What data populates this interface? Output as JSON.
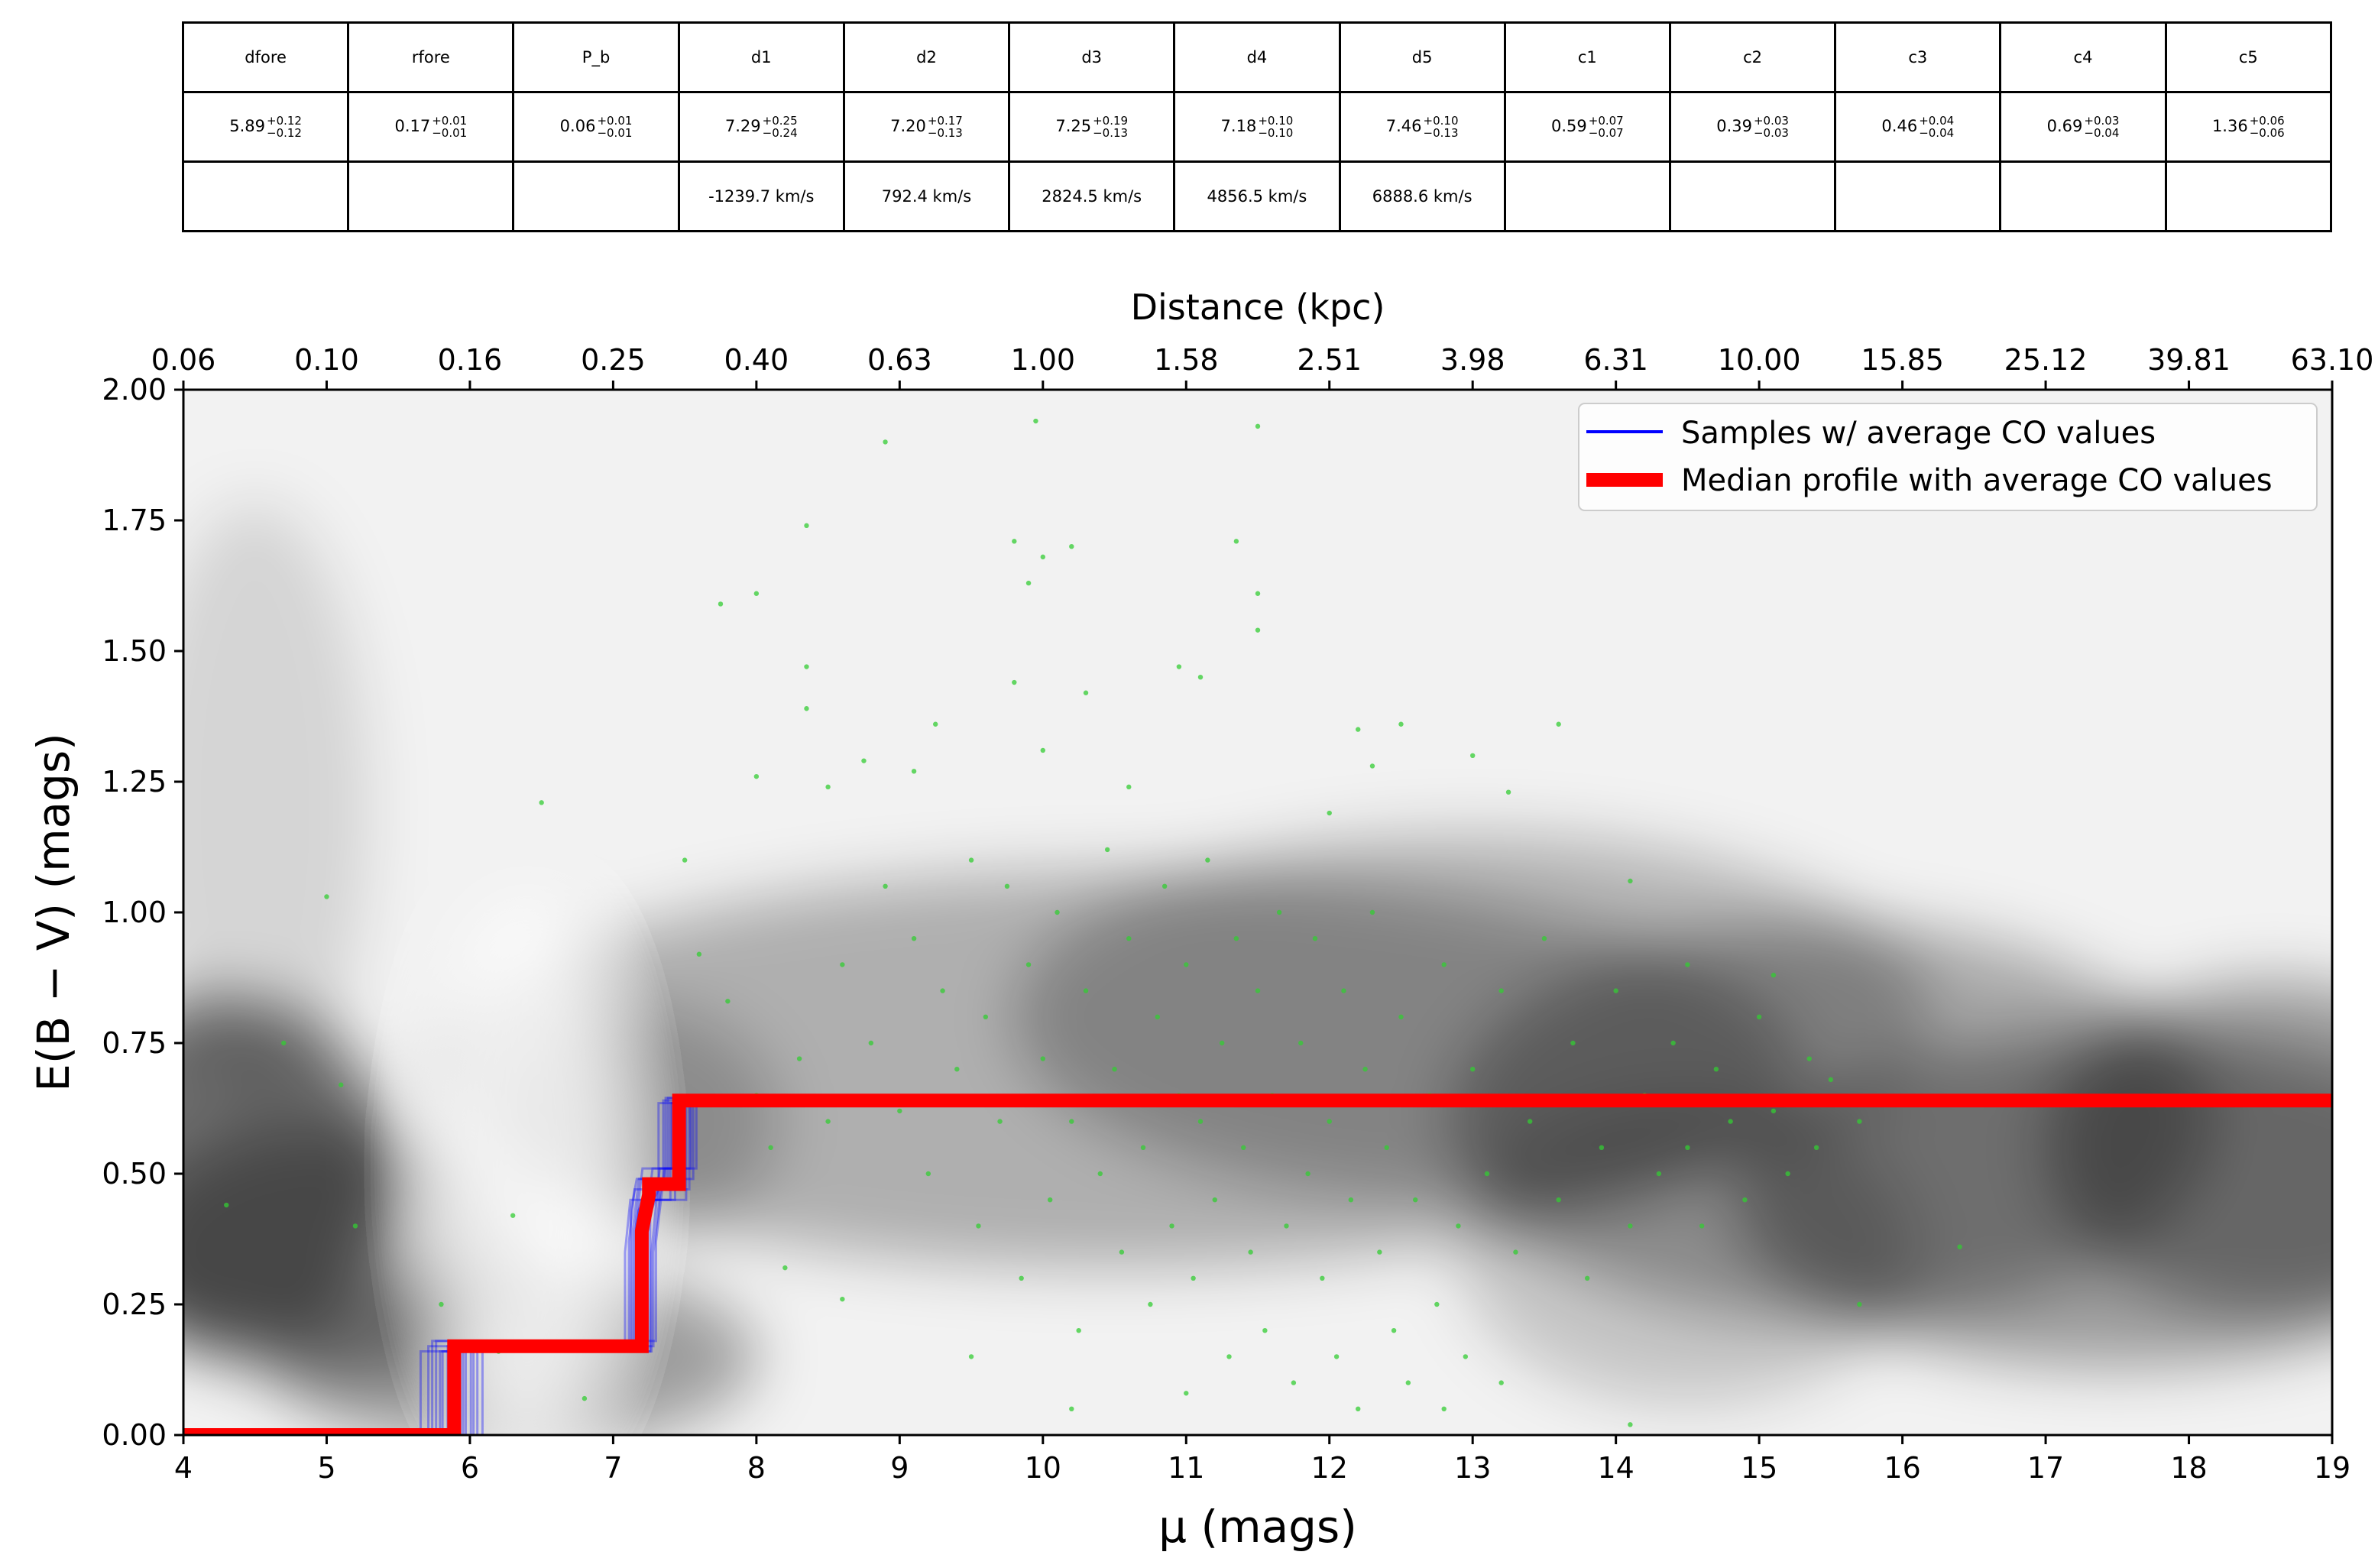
{
  "params_table": {
    "headers": [
      "dfore",
      "rfore",
      "P_b",
      "d1",
      "d2",
      "d3",
      "d4",
      "d5",
      "c1",
      "c2",
      "c3",
      "c4",
      "c5"
    ],
    "values": [
      {
        "v": "5.89",
        "plus": "+0.12",
        "minus": "−0.12"
      },
      {
        "v": "0.17",
        "plus": "+0.01",
        "minus": "−0.01"
      },
      {
        "v": "0.06",
        "plus": "+0.01",
        "minus": "−0.01"
      },
      {
        "v": "7.29",
        "plus": "+0.25",
        "minus": "−0.24"
      },
      {
        "v": "7.20",
        "plus": "+0.17",
        "minus": "−0.13"
      },
      {
        "v": "7.25",
        "plus": "+0.19",
        "minus": "−0.13"
      },
      {
        "v": "7.18",
        "plus": "+0.10",
        "minus": "−0.10"
      },
      {
        "v": "7.46",
        "plus": "+0.10",
        "minus": "−0.13"
      },
      {
        "v": "0.59",
        "plus": "+0.07",
        "minus": "−0.07"
      },
      {
        "v": "0.39",
        "plus": "+0.03",
        "minus": "−0.03"
      },
      {
        "v": "0.46",
        "plus": "+0.04",
        "minus": "−0.04"
      },
      {
        "v": "0.69",
        "plus": "+0.03",
        "minus": "−0.04"
      },
      {
        "v": "1.36",
        "plus": "+0.06",
        "minus": "−0.06"
      }
    ],
    "velocities": [
      "",
      "",
      "",
      "-1239.7 km/s",
      "792.4 km/s",
      "2824.5 km/s",
      "4856.5 km/s",
      "6888.6 km/s",
      "",
      "",
      "",
      "",
      ""
    ]
  },
  "chart_data": {
    "type": "line",
    "xlabel": "μ (mags)",
    "ylabel": "E(B − V) (mags)",
    "top_axis_label": "Distance (kpc)",
    "xlim": [
      4,
      19
    ],
    "ylim": [
      0,
      2
    ],
    "x_ticks": [
      4,
      5,
      6,
      7,
      8,
      9,
      10,
      11,
      12,
      13,
      14,
      15,
      16,
      17,
      18,
      19
    ],
    "y_ticks": [
      "0.00",
      "0.25",
      "0.50",
      "0.75",
      "1.00",
      "1.25",
      "1.50",
      "1.75",
      "2.00"
    ],
    "top_ticks": [
      {
        "mu": 4,
        "label": "0.06"
      },
      {
        "mu": 5,
        "label": "0.10"
      },
      {
        "mu": 6,
        "label": "0.16"
      },
      {
        "mu": 7,
        "label": "0.25"
      },
      {
        "mu": 8,
        "label": "0.40"
      },
      {
        "mu": 9,
        "label": "0.63"
      },
      {
        "mu": 10,
        "label": "1.00"
      },
      {
        "mu": 11,
        "label": "1.58"
      },
      {
        "mu": 12,
        "label": "2.51"
      },
      {
        "mu": 13,
        "label": "3.98"
      },
      {
        "mu": 14,
        "label": "6.31"
      },
      {
        "mu": 15,
        "label": "10.00"
      },
      {
        "mu": 16,
        "label": "15.85"
      },
      {
        "mu": 17,
        "label": "25.12"
      },
      {
        "mu": 18,
        "label": "39.81"
      },
      {
        "mu": 19,
        "label": "63.10"
      }
    ],
    "legend_position": "top-right",
    "series": [
      {
        "name": "Samples  w/ average CO values",
        "color": "#0000ff",
        "kind": "posterior sample step profiles (many thin lines)",
        "steps_x_range": [
          [
            5.6,
            6.0
          ],
          [
            6.9,
            7.3
          ],
          [
            7.0,
            7.5
          ],
          [
            7.3,
            7.7
          ]
        ]
      },
      {
        "name": "Median profile with average CO values",
        "color": "#ff0000",
        "x": [
          4.0,
          5.89,
          5.89,
          7.2,
          7.2,
          7.25,
          7.25,
          7.46,
          7.46,
          19.0
        ],
        "y": [
          0.0,
          0.0,
          0.17,
          0.17,
          0.39,
          0.46,
          0.48,
          0.48,
          0.64,
          0.64
        ]
      },
      {
        "name": "",
        "color": "#33cc33",
        "kind": "stellar reddening points (scatter)",
        "points": [
          [
            5.0,
            1.03
          ],
          [
            4.7,
            0.75
          ],
          [
            5.1,
            0.67
          ],
          [
            5.2,
            0.4
          ],
          [
            4.3,
            0.44
          ],
          [
            5.8,
            0.25
          ],
          [
            6.3,
            0.42
          ],
          [
            6.5,
            1.21
          ],
          [
            6.2,
            0.16
          ],
          [
            6.8,
            0.07
          ],
          [
            7.5,
            1.1
          ],
          [
            7.6,
            0.92
          ],
          [
            7.8,
            0.83
          ],
          [
            7.75,
            1.59
          ],
          [
            8.0,
            1.61
          ],
          [
            8.0,
            1.26
          ],
          [
            8.35,
            1.74
          ],
          [
            8.35,
            1.47
          ],
          [
            8.35,
            1.39
          ],
          [
            8.5,
            1.24
          ],
          [
            8.75,
            1.29
          ],
          [
            8.9,
            1.9
          ],
          [
            9.1,
            1.27
          ],
          [
            9.25,
            1.36
          ],
          [
            9.8,
            1.71
          ],
          [
            9.8,
            1.44
          ],
          [
            9.95,
            1.94
          ],
          [
            10.0,
            1.68
          ],
          [
            9.9,
            1.63
          ],
          [
            10.0,
            1.31
          ],
          [
            10.2,
            1.7
          ],
          [
            10.3,
            1.42
          ],
          [
            10.6,
            1.24
          ],
          [
            10.95,
            1.47
          ],
          [
            11.1,
            1.45
          ],
          [
            11.35,
            1.71
          ],
          [
            11.5,
            1.93
          ],
          [
            11.5,
            1.61
          ],
          [
            11.5,
            1.54
          ],
          [
            12.0,
            1.19
          ],
          [
            12.2,
            1.35
          ],
          [
            12.5,
            1.36
          ],
          [
            12.3,
            1.28
          ],
          [
            13.0,
            1.3
          ],
          [
            13.25,
            1.23
          ],
          [
            13.6,
            1.36
          ],
          [
            14.1,
            1.06
          ],
          [
            14.5,
            0.9
          ],
          [
            15.1,
            0.88
          ],
          [
            15.35,
            0.72
          ],
          [
            15.7,
            0.25
          ],
          [
            16.4,
            0.36
          ],
          [
            14.1,
            0.02
          ],
          [
            13.2,
            0.1
          ],
          [
            12.8,
            0.05
          ],
          [
            11.0,
            0.08
          ],
          [
            10.2,
            0.05
          ],
          [
            9.5,
            0.15
          ],
          [
            8.6,
            0.26
          ],
          [
            8.2,
            0.32
          ],
          [
            8.0,
            0.65
          ],
          [
            8.1,
            0.55
          ],
          [
            8.3,
            0.72
          ],
          [
            8.5,
            0.6
          ],
          [
            8.6,
            0.9
          ],
          [
            8.8,
            0.75
          ],
          [
            8.9,
            1.05
          ],
          [
            9.0,
            0.62
          ],
          [
            9.1,
            0.95
          ],
          [
            9.2,
            0.5
          ],
          [
            9.3,
            0.85
          ],
          [
            9.4,
            0.7
          ],
          [
            9.5,
            1.1
          ],
          [
            9.55,
            0.4
          ],
          [
            9.6,
            0.8
          ],
          [
            9.7,
            0.6
          ],
          [
            9.75,
            1.05
          ],
          [
            9.85,
            0.3
          ],
          [
            9.9,
            0.9
          ],
          [
            10.0,
            0.72
          ],
          [
            10.05,
            0.45
          ],
          [
            10.1,
            1.0
          ],
          [
            10.2,
            0.6
          ],
          [
            10.25,
            0.2
          ],
          [
            10.3,
            0.85
          ],
          [
            10.4,
            0.5
          ],
          [
            10.45,
            1.12
          ],
          [
            10.5,
            0.7
          ],
          [
            10.55,
            0.35
          ],
          [
            10.6,
            0.95
          ],
          [
            10.7,
            0.55
          ],
          [
            10.75,
            0.25
          ],
          [
            10.8,
            0.8
          ],
          [
            10.85,
            1.05
          ],
          [
            10.9,
            0.4
          ],
          [
            10.95,
            0.65
          ],
          [
            11.0,
            0.9
          ],
          [
            11.05,
            0.3
          ],
          [
            11.1,
            0.6
          ],
          [
            11.15,
            1.1
          ],
          [
            11.2,
            0.45
          ],
          [
            11.25,
            0.75
          ],
          [
            11.3,
            0.15
          ],
          [
            11.35,
            0.95
          ],
          [
            11.4,
            0.55
          ],
          [
            11.45,
            0.35
          ],
          [
            11.5,
            0.85
          ],
          [
            11.55,
            0.2
          ],
          [
            11.6,
            0.65
          ],
          [
            11.65,
            1.0
          ],
          [
            11.7,
            0.4
          ],
          [
            11.75,
            0.1
          ],
          [
            11.8,
            0.75
          ],
          [
            11.85,
            0.5
          ],
          [
            11.9,
            0.95
          ],
          [
            11.95,
            0.3
          ],
          [
            12.0,
            0.6
          ],
          [
            12.05,
            0.15
          ],
          [
            12.1,
            0.85
          ],
          [
            12.15,
            0.45
          ],
          [
            12.2,
            0.05
          ],
          [
            12.25,
            0.7
          ],
          [
            12.3,
            1.0
          ],
          [
            12.35,
            0.35
          ],
          [
            12.4,
            0.55
          ],
          [
            12.45,
            0.2
          ],
          [
            12.5,
            0.8
          ],
          [
            12.55,
            0.1
          ],
          [
            12.6,
            0.45
          ],
          [
            12.7,
            0.65
          ],
          [
            12.75,
            0.25
          ],
          [
            12.8,
            0.9
          ],
          [
            12.9,
            0.4
          ],
          [
            12.95,
            0.15
          ],
          [
            13.0,
            0.7
          ],
          [
            13.1,
            0.5
          ],
          [
            13.2,
            0.85
          ],
          [
            13.3,
            0.35
          ],
          [
            13.4,
            0.6
          ],
          [
            13.5,
            0.95
          ],
          [
            13.6,
            0.45
          ],
          [
            13.7,
            0.75
          ],
          [
            13.8,
            0.3
          ],
          [
            13.9,
            0.55
          ],
          [
            14.0,
            0.85
          ],
          [
            14.1,
            0.4
          ],
          [
            14.2,
            0.65
          ],
          [
            14.3,
            0.5
          ],
          [
            14.4,
            0.75
          ],
          [
            14.5,
            0.55
          ],
          [
            14.6,
            0.4
          ],
          [
            14.7,
            0.7
          ],
          [
            14.8,
            0.6
          ],
          [
            14.9,
            0.45
          ],
          [
            15.0,
            0.8
          ],
          [
            15.1,
            0.62
          ],
          [
            15.2,
            0.5
          ],
          [
            15.4,
            0.55
          ],
          [
            15.5,
            0.68
          ],
          [
            15.7,
            0.6
          ]
        ]
      }
    ],
    "background": "grayscale density map of E(B−V) vs μ"
  }
}
